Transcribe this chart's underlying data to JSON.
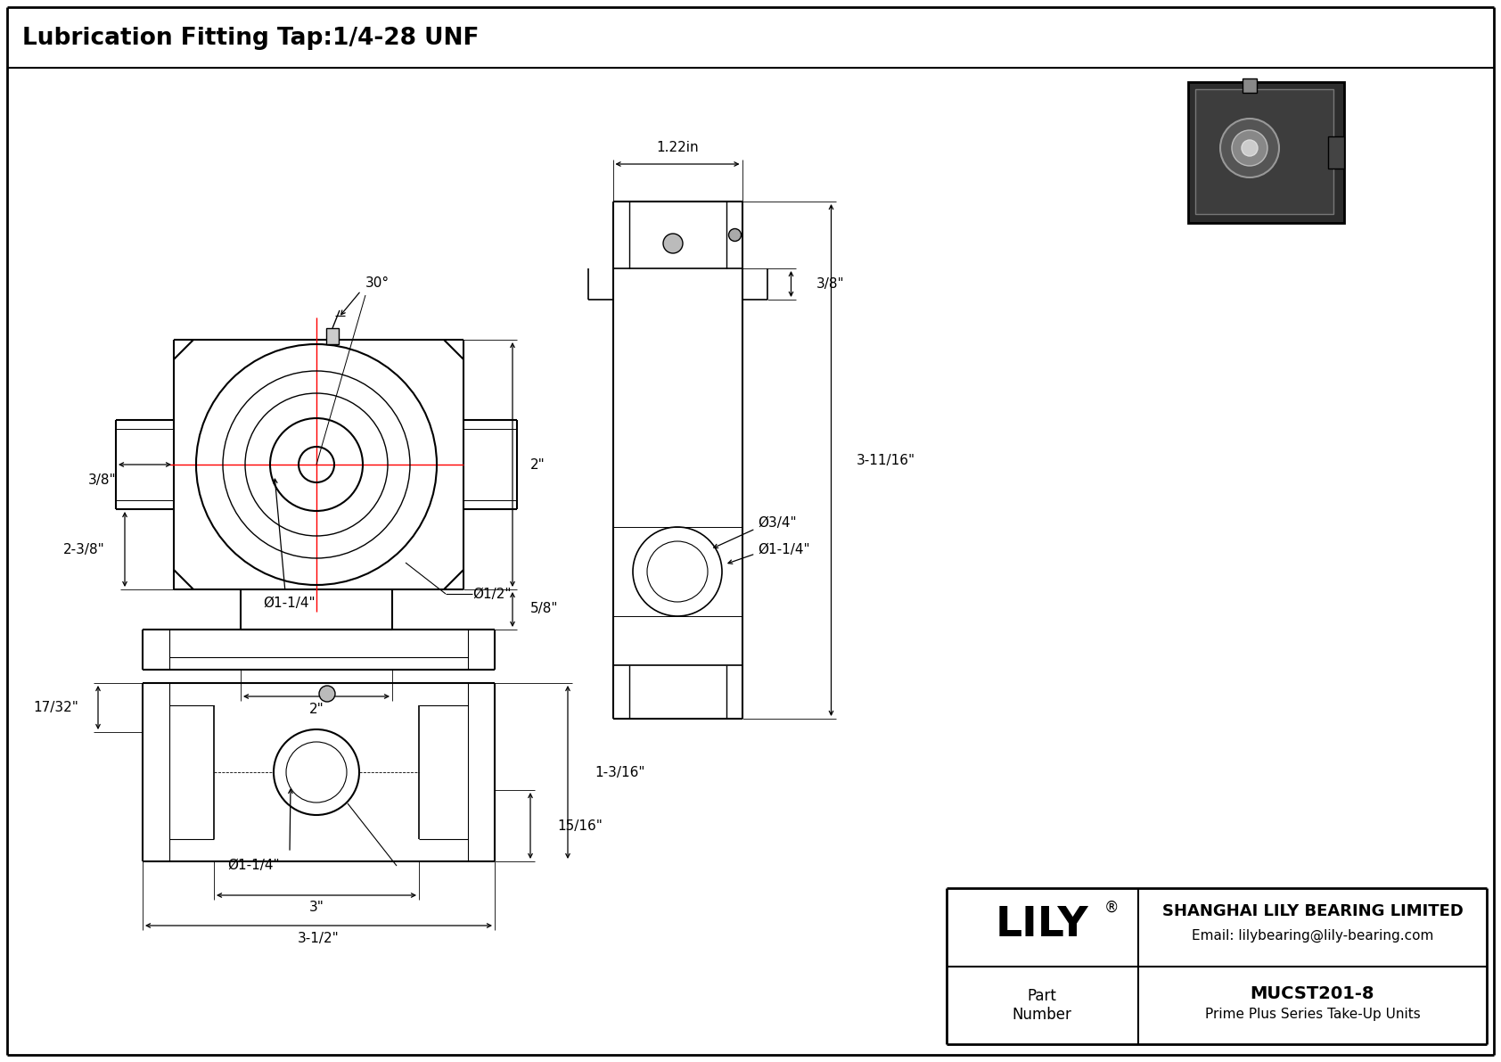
{
  "title": "Lubrication Fitting Tap:1/4-28 UNF",
  "bg_color": "#ffffff",
  "line_color": "#000000",
  "red_line_color": "#ff0000",
  "title_fontsize": 19,
  "dim_fontsize": 11,
  "logo_registered": "®",
  "company_name": "SHANGHAI LILY BEARING LIMITED",
  "company_email": "Email: lilybearing@lily-bearing.com",
  "part_label": "Part\nNumber",
  "part_number": "MUCST201-8",
  "part_series": "Prime Plus Series Take-Up Units",
  "dim_30deg": "30°",
  "dim_2in": "2\"",
  "dim_5_8": "5/8\"",
  "dim_1_2": "Ø1/2\"",
  "dim_1_14_front": "Ø1-1/4\"",
  "dim_2in_b": "2\"",
  "dim_2_38": "2-3/8\"",
  "dim_3_8_left": "3/8\"",
  "dim_17_32": "17/32\"",
  "dim_15_16": "15/16\"",
  "dim_1_316": "1-3/16\"",
  "dim_dia_1_14_bot": "Ø1-1/4\"",
  "dim_3in": "3\"",
  "dim_3_12": "3-1/2\"",
  "dim_1_22in": "1.22in",
  "dim_3_8_right": "3/8\"",
  "dim_3_11_16": "3-11/16\"",
  "dim_dia_3_4": "Ø3/4\"",
  "dim_dia_1_14_right": "Ø1-1/4\""
}
